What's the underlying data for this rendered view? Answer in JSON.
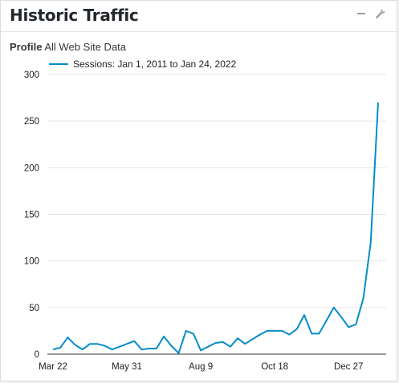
{
  "widget": {
    "title": "Historic Traffic",
    "controls": {
      "minimize_icon": "minus-icon",
      "settings_icon": "wrench-icon"
    }
  },
  "profile": {
    "label": "Profile",
    "value": "All Web Site Data"
  },
  "chart_data": {
    "type": "line",
    "series": [
      {
        "name": "Sessions: Jan 1, 2011 to Jan 24, 2022",
        "color": "#058dc7",
        "values": [
          5,
          7,
          18,
          10,
          5,
          11,
          11,
          9,
          5,
          8,
          11,
          14,
          5,
          6,
          6,
          19,
          9,
          1,
          25,
          22,
          4,
          8,
          12,
          13,
          8,
          17,
          11,
          16,
          21,
          25,
          25,
          25,
          21,
          27,
          42,
          22,
          22,
          36,
          50,
          40,
          29,
          32,
          60,
          120,
          270
        ]
      }
    ],
    "x_tick_labels": [
      "Mar 22",
      "May 31",
      "Aug 9",
      "Oct 18",
      "Dec 27"
    ],
    "x_tick_indices": [
      0,
      10,
      20,
      30,
      40
    ],
    "y_ticks": [
      0,
      50,
      100,
      150,
      200,
      250,
      300
    ],
    "ylim": [
      0,
      300
    ],
    "grid": true,
    "legend": "top-left"
  }
}
